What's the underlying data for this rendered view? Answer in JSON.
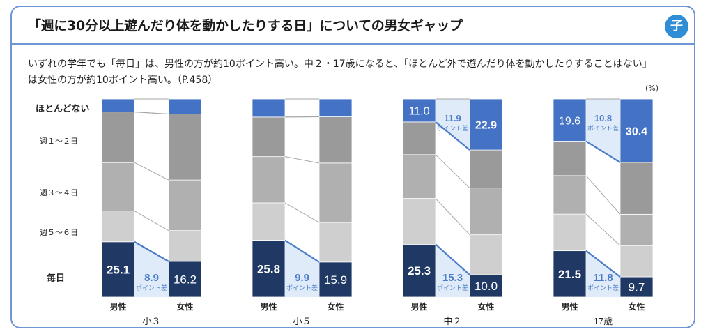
{
  "title": "「週に30分以上遊んだり体を動かしたりする日」についての男女ギャップ",
  "badge": "子",
  "note_line1": "いずれの学年でも「毎日」は、男性の方が約10ポイント高い。中２・17歳になると、「ほとんど外で遊んだり体を動かしたりすることはない」",
  "note_line2": "は女性の方が約10ポイント高い。（P.458）",
  "unit": "(%)",
  "categories": [
    "ほとんどない",
    "週１～２日",
    "週３～４日",
    "週５～６日",
    "毎日"
  ],
  "colors": {
    "everyday": "#1f3864",
    "rarely": "#4472c4",
    "weekly_1_2": "#9a9a9a",
    "weekly_3_4": "#b0b0b0",
    "weekly_5_6": "#cfcfcf",
    "diff_box": "#dce9f7",
    "diff_text": "#4a7cc9",
    "border": "#6f96d4"
  },
  "chart_data": {
    "type": "stacked-bar-100",
    "segments_order_bottom_to_top": [
      "毎日",
      "週５～６日",
      "週３～４日",
      "週１～２日",
      "ほとんどない"
    ],
    "groups": [
      {
        "name": "小３",
        "male_label": "男性",
        "female_label": "女性",
        "male": [
          25.1,
          14,
          22,
          23,
          5.9
        ],
        "female": [
          16.2,
          14,
          23,
          30,
          6.8
        ],
        "everyday_diff": "8.9",
        "rarely_diff": null,
        "male_label_everyday": "25.1",
        "female_label_everyday": "16.2",
        "male_label_rarely": null,
        "female_label_rarely": null
      },
      {
        "name": "小５",
        "male": [
          25.8,
          17,
          21,
          18,
          8.2
        ],
        "female": [
          15.9,
          18,
          27,
          21,
          8.1
        ],
        "everyday_diff": "9.9",
        "rarely_diff": null,
        "male_label_everyday": "25.8",
        "female_label_everyday": "15.9",
        "male_label_rarely": null,
        "female_label_rarely": null
      },
      {
        "name": "中２",
        "male": [
          25.3,
          22,
          21,
          15.7,
          11.0
        ],
        "female": [
          10.0,
          18,
          21,
          17.1,
          22.9
        ],
        "everyday_diff": "15.3",
        "rarely_diff": "11.9",
        "male_label_everyday": "25.3",
        "female_label_everyday": "10.0",
        "male_label_rarely": "11.0",
        "female_label_rarely": "22.9"
      },
      {
        "name": "17歳",
        "male": [
          21.5,
          17,
          17.9,
          16,
          19.6
        ],
        "female": [
          9.7,
          15,
          15,
          24.9,
          30.4
        ],
        "everyday_diff": "11.8",
        "rarely_diff": "10.8",
        "male_label_everyday": "21.5",
        "female_label_everyday": "9.7",
        "male_label_rarely": "19.6",
        "female_label_rarely": "30.4"
      }
    ],
    "diff_caption": "ポイント差",
    "male_label": "男性",
    "female_label": "女性"
  }
}
